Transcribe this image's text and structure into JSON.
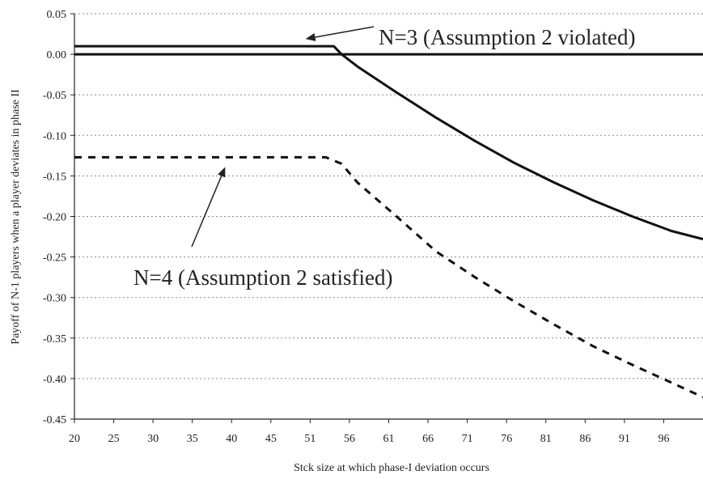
{
  "chart_data": {
    "type": "line",
    "title": "",
    "xlabel": "Stck size at which phase-I deviation occurs",
    "ylabel": "Payoff of N-1 players when a player deviates in phase II",
    "x_ticks": [
      "20",
      "25",
      "30",
      "35",
      "40",
      "45",
      "51",
      "56",
      "61",
      "66",
      "71",
      "76",
      "81",
      "86",
      "91",
      "96"
    ],
    "y_ticks": [
      "0.05",
      "0.00",
      "-0.05",
      "-0.10",
      "-0.15",
      "-0.20",
      "-0.25",
      "-0.30",
      "-0.35",
      "-0.40",
      "-0.45"
    ],
    "ylim": [
      -0.45,
      0.05
    ],
    "xlim": [
      20,
      100
    ],
    "grid": true,
    "series": [
      {
        "style": "solid",
        "x": [
          20,
          25,
          30,
          35,
          40,
          45,
          51,
          53,
          54,
          56,
          61,
          66,
          71,
          76,
          81,
          86,
          91,
          96,
          100
        ],
        "y": [
          0.01,
          0.01,
          0.01,
          0.01,
          0.01,
          0.01,
          0.01,
          0.01,
          0.0,
          -0.015,
          -0.047,
          -0.078,
          -0.107,
          -0.134,
          -0.158,
          -0.18,
          -0.2,
          -0.218,
          -0.228
        ]
      },
      {
        "style": "dashed",
        "x": [
          20,
          25,
          30,
          35,
          40,
          45,
          51,
          52,
          54,
          56,
          61,
          66,
          71,
          76,
          81,
          86,
          91,
          96,
          100
        ],
        "y": [
          -0.127,
          -0.127,
          -0.127,
          -0.127,
          -0.127,
          -0.127,
          -0.127,
          -0.127,
          -0.135,
          -0.158,
          -0.2,
          -0.243,
          -0.275,
          -0.305,
          -0.333,
          -0.36,
          -0.383,
          -0.405,
          -0.423
        ]
      }
    ],
    "reference_lines": [
      {
        "axis": "y",
        "value": 0.0
      }
    ],
    "annotations": [
      {
        "id": "n3",
        "text": "N=3 (Assumption 2 violated)",
        "points_to": {
          "x": 49,
          "y": 0.01
        }
      },
      {
        "id": "n4",
        "text": "N=4 (Assumption 2 satisfied)",
        "points_to": {
          "x": 39.5,
          "y": -0.127
        }
      }
    ]
  }
}
